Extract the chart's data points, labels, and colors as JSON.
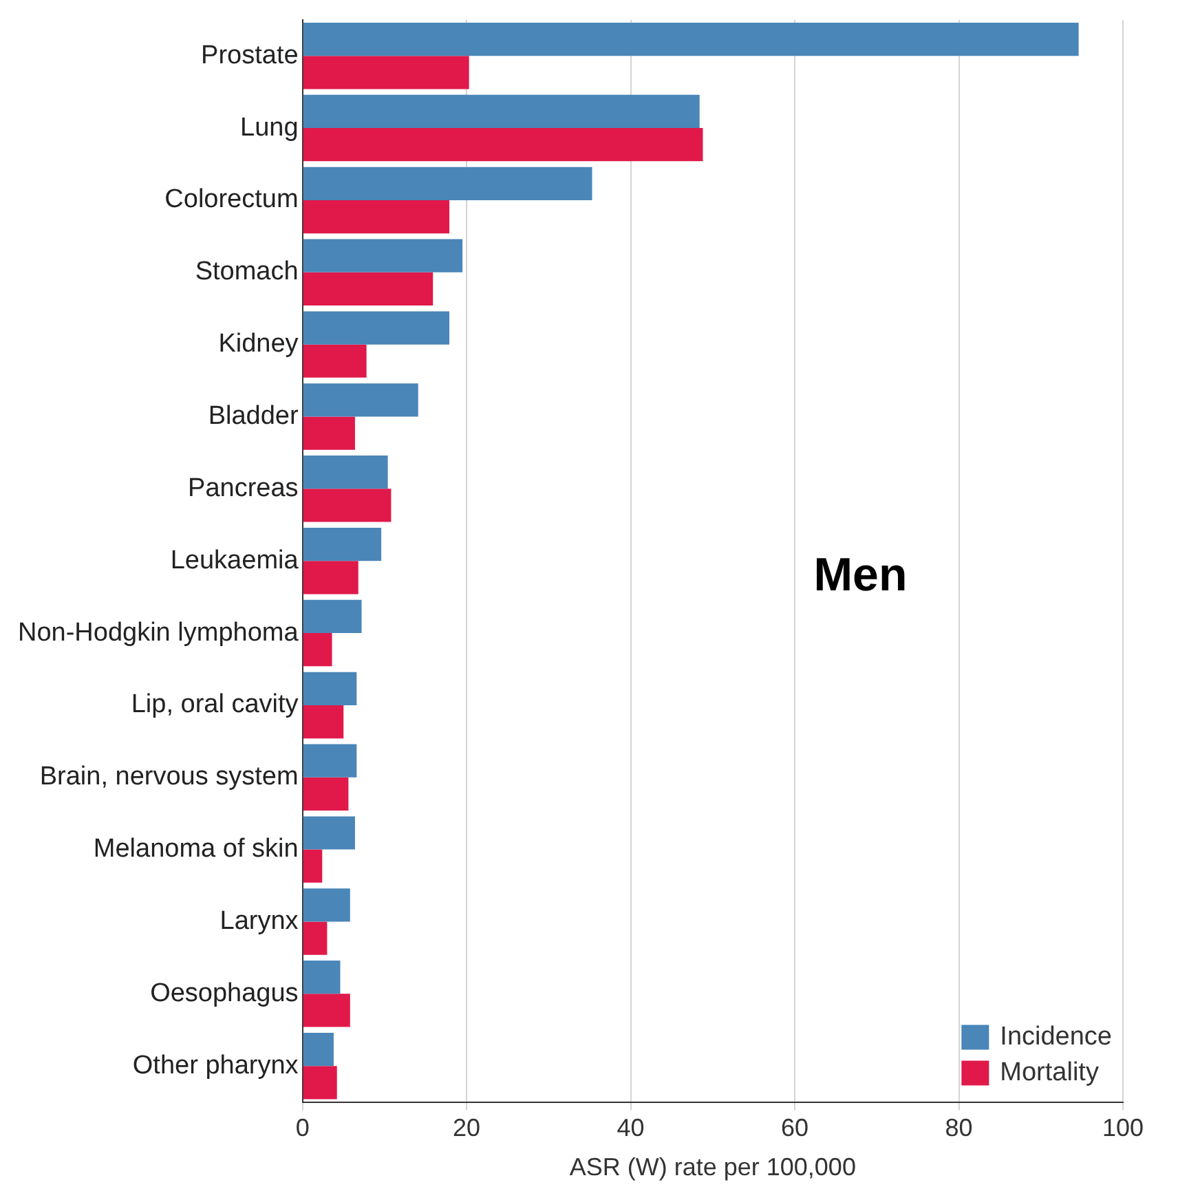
{
  "chart_data": {
    "type": "bar",
    "orientation": "horizontal",
    "xlabel": "ASR (W) rate per 100,000",
    "categories": [
      "Prostate",
      "Lung",
      "Colorectum",
      "Stomach",
      "Kidney",
      "Bladder",
      "Pancreas",
      "Leukaemia",
      "Non-Hodgkin lymphoma",
      "Lip, oral cavity",
      "Brain, nervous system",
      "Melanoma of skin",
      "Larynx",
      "Oesophagus",
      "Other pharynx"
    ],
    "series": [
      {
        "name": "Incidence",
        "color": "#4a86b8",
        "values": [
          94.6,
          48.4,
          35.3,
          19.5,
          17.9,
          14.1,
          10.4,
          9.6,
          7.2,
          6.6,
          6.6,
          6.4,
          5.8,
          4.6,
          3.8
        ]
      },
      {
        "name": "Mortality",
        "color": "#e0194a",
        "values": [
          20.3,
          48.8,
          17.9,
          15.9,
          7.8,
          6.4,
          10.8,
          6.8,
          3.6,
          5.0,
          5.6,
          2.4,
          3.0,
          5.8,
          4.2
        ]
      }
    ],
    "xlim": [
      0,
      100
    ],
    "xticks": [
      0,
      20,
      40,
      60,
      80,
      100
    ],
    "grid": "x",
    "legend": "bottom right",
    "annotations": [
      "Men"
    ]
  }
}
